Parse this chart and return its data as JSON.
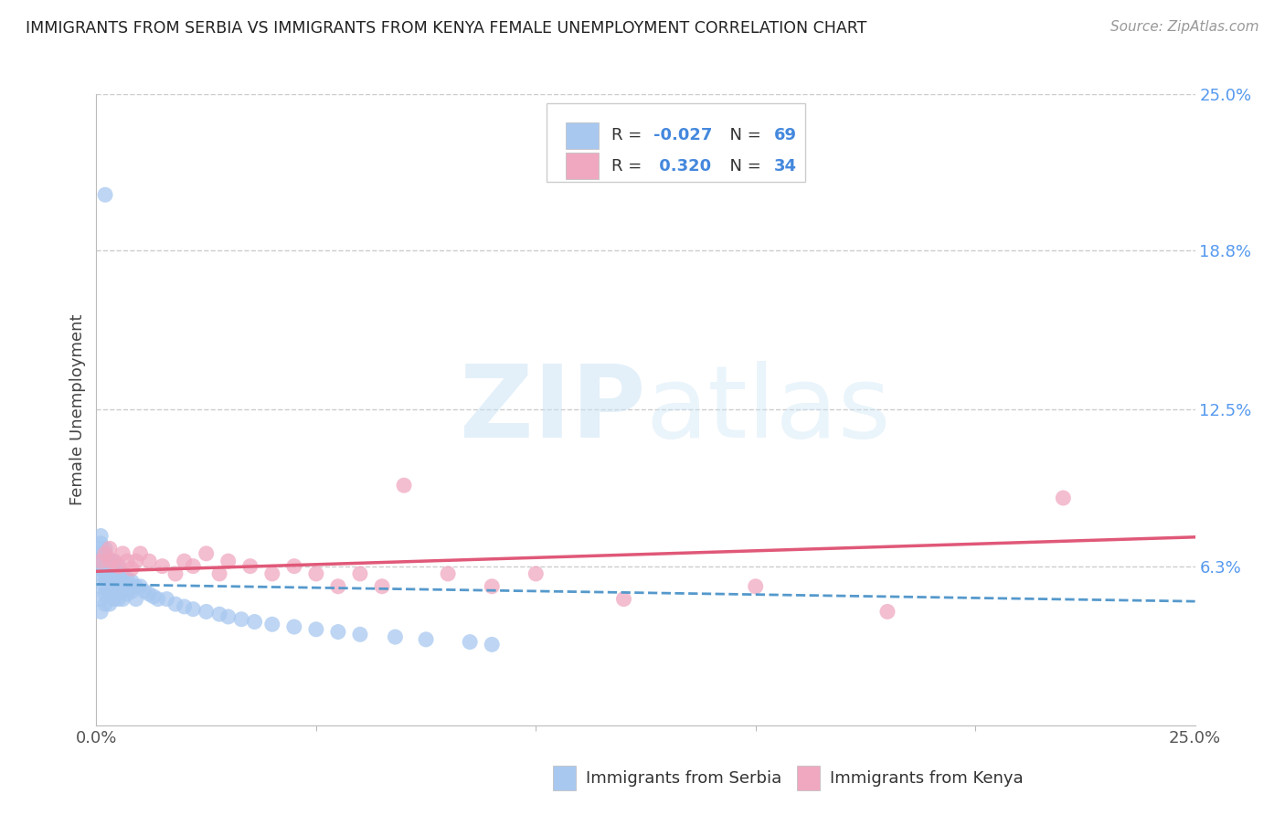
{
  "title": "IMMIGRANTS FROM SERBIA VS IMMIGRANTS FROM KENYA FEMALE UNEMPLOYMENT CORRELATION CHART",
  "source": "Source: ZipAtlas.com",
  "ylabel": "Female Unemployment",
  "x_min": 0.0,
  "x_max": 0.25,
  "y_min": 0.0,
  "y_max": 0.25,
  "y_tick_labels_right": [
    "25.0%",
    "18.8%",
    "12.5%",
    "6.3%"
  ],
  "y_tick_vals_right": [
    0.25,
    0.188,
    0.125,
    0.063
  ],
  "serbia_R": -0.027,
  "serbia_N": 69,
  "kenya_R": 0.32,
  "kenya_N": 34,
  "serbia_color": "#a8c8f0",
  "kenya_color": "#f0a8c0",
  "serbia_line_color": "#5599cc",
  "kenya_line_color": "#e05878",
  "watermark_zip": "ZIP",
  "watermark_atlas": "atlas",
  "legend_serbia": "Immigrants from Serbia",
  "legend_kenya": "Immigrants from Kenya",
  "serbia_x": [
    0.001,
    0.001,
    0.001,
    0.001,
    0.001,
    0.001,
    0.001,
    0.001,
    0.001,
    0.001,
    0.002,
    0.002,
    0.002,
    0.002,
    0.002,
    0.002,
    0.002,
    0.002,
    0.002,
    0.003,
    0.003,
    0.003,
    0.003,
    0.003,
    0.003,
    0.003,
    0.004,
    0.004,
    0.004,
    0.004,
    0.004,
    0.005,
    0.005,
    0.005,
    0.005,
    0.006,
    0.006,
    0.006,
    0.007,
    0.007,
    0.007,
    0.008,
    0.008,
    0.009,
    0.009,
    0.01,
    0.011,
    0.012,
    0.013,
    0.014,
    0.016,
    0.018,
    0.02,
    0.022,
    0.025,
    0.028,
    0.03,
    0.033,
    0.036,
    0.04,
    0.045,
    0.05,
    0.055,
    0.06,
    0.068,
    0.075,
    0.002,
    0.085,
    0.09
  ],
  "serbia_y": [
    0.055,
    0.06,
    0.062,
    0.065,
    0.068,
    0.07,
    0.072,
    0.075,
    0.05,
    0.045,
    0.058,
    0.06,
    0.062,
    0.065,
    0.068,
    0.07,
    0.055,
    0.052,
    0.048,
    0.058,
    0.06,
    0.063,
    0.065,
    0.055,
    0.052,
    0.048,
    0.058,
    0.062,
    0.065,
    0.055,
    0.05,
    0.06,
    0.063,
    0.055,
    0.05,
    0.06,
    0.055,
    0.05,
    0.058,
    0.055,
    0.052,
    0.057,
    0.053,
    0.055,
    0.05,
    0.055,
    0.053,
    0.052,
    0.051,
    0.05,
    0.05,
    0.048,
    0.047,
    0.046,
    0.045,
    0.044,
    0.043,
    0.042,
    0.041,
    0.04,
    0.039,
    0.038,
    0.037,
    0.036,
    0.035,
    0.034,
    0.21,
    0.033,
    0.032
  ],
  "kenya_x": [
    0.001,
    0.002,
    0.003,
    0.003,
    0.004,
    0.005,
    0.006,
    0.007,
    0.008,
    0.009,
    0.01,
    0.012,
    0.015,
    0.018,
    0.02,
    0.022,
    0.025,
    0.028,
    0.03,
    0.035,
    0.04,
    0.045,
    0.05,
    0.055,
    0.06,
    0.065,
    0.07,
    0.08,
    0.09,
    0.1,
    0.12,
    0.15,
    0.18,
    0.22
  ],
  "kenya_y": [
    0.065,
    0.068,
    0.065,
    0.07,
    0.065,
    0.063,
    0.068,
    0.065,
    0.062,
    0.065,
    0.068,
    0.065,
    0.063,
    0.06,
    0.065,
    0.063,
    0.068,
    0.06,
    0.065,
    0.063,
    0.06,
    0.063,
    0.06,
    0.055,
    0.06,
    0.055,
    0.095,
    0.06,
    0.055,
    0.06,
    0.05,
    0.055,
    0.045,
    0.09
  ]
}
